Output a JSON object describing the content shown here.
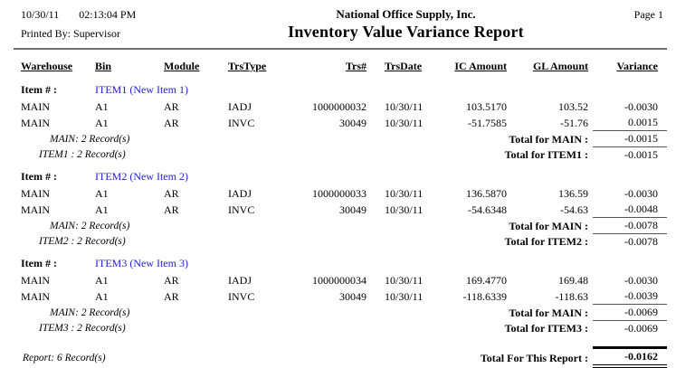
{
  "page": {
    "date": "10/30/11",
    "time": "02:13:04 PM",
    "printed_by": "Printed By: Supervisor",
    "company": "National Office Supply, Inc.",
    "title": "Inventory Value Variance Report",
    "page_label": "Page 1"
  },
  "colors": {
    "item_link_blue": "#2222cc",
    "header_rule_gray": "#6f6f6f"
  },
  "table": {
    "columns": [
      "Warehouse",
      "Bin",
      "Module",
      "TrsType",
      "Trs#",
      "TrsDate",
      "IC Amount",
      "GL Amount",
      "Variance"
    ],
    "item_label": "Item # :",
    "groups": [
      {
        "item": "ITEM1 (New Item 1)",
        "rows": [
          {
            "warehouse": "MAIN",
            "bin": "A1",
            "module": "AR",
            "trstype": "IADJ",
            "trsnum": "1000000032",
            "trsdate": "10/30/11",
            "ic": "103.5170",
            "gl": "103.52",
            "variance": "-0.0030"
          },
          {
            "warehouse": "MAIN",
            "bin": "A1",
            "module": "AR",
            "trstype": "INVC",
            "trsnum": "30049",
            "trsdate": "10/30/11",
            "ic": "-51.7585",
            "gl": "-51.76",
            "variance": "0.0015"
          }
        ],
        "warehouse_count": "MAIN: 2 Record(s)",
        "warehouse_total_label": "Total for MAIN :",
        "warehouse_total": "-0.0015",
        "item_count": "ITEM1 : 2 Record(s)",
        "item_total_label": "Total for ITEM1 :",
        "item_total": "-0.0015"
      },
      {
        "item": "ITEM2 (New Item 2)",
        "rows": [
          {
            "warehouse": "MAIN",
            "bin": "A1",
            "module": "AR",
            "trstype": "IADJ",
            "trsnum": "1000000033",
            "trsdate": "10/30/11",
            "ic": "136.5870",
            "gl": "136.59",
            "variance": "-0.0030"
          },
          {
            "warehouse": "MAIN",
            "bin": "A1",
            "module": "AR",
            "trstype": "INVC",
            "trsnum": "30049",
            "trsdate": "10/30/11",
            "ic": "-54.6348",
            "gl": "-54.63",
            "variance": "-0.0048"
          }
        ],
        "warehouse_count": "MAIN: 2 Record(s)",
        "warehouse_total_label": "Total for MAIN :",
        "warehouse_total": "-0.0078",
        "item_count": "ITEM2 : 2 Record(s)",
        "item_total_label": "Total for ITEM2 :",
        "item_total": "-0.0078"
      },
      {
        "item": "ITEM3 (New Item 3)",
        "rows": [
          {
            "warehouse": "MAIN",
            "bin": "A1",
            "module": "AR",
            "trstype": "IADJ",
            "trsnum": "1000000034",
            "trsdate": "10/30/11",
            "ic": "169.4770",
            "gl": "169.48",
            "variance": "-0.0030"
          },
          {
            "warehouse": "MAIN",
            "bin": "A1",
            "module": "AR",
            "trstype": "INVC",
            "trsnum": "30049",
            "trsdate": "10/30/11",
            "ic": "-118.6339",
            "gl": "-118.63",
            "variance": "-0.0039"
          }
        ],
        "warehouse_count": "MAIN: 2 Record(s)",
        "warehouse_total_label": "Total for MAIN :",
        "warehouse_total": "-0.0069",
        "item_count": "ITEM3 : 2 Record(s)",
        "item_total_label": "Total for ITEM3 :",
        "item_total": "-0.0069"
      }
    ],
    "report_count": "Report: 6 Record(s)",
    "report_total_label": "Total For This Report :",
    "report_total": "-0.0162"
  }
}
